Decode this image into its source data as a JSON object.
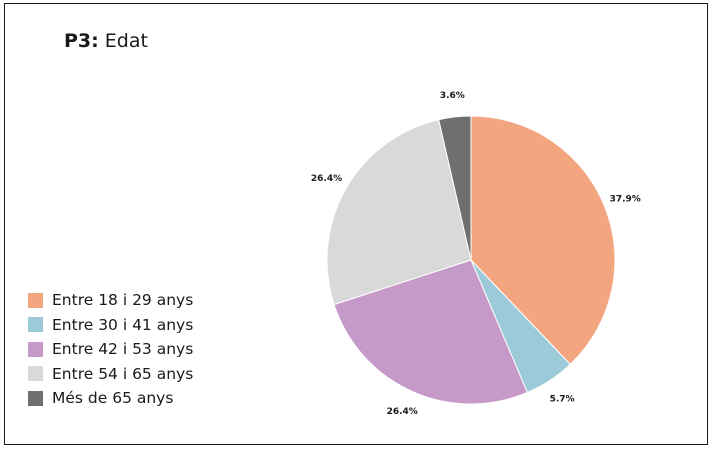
{
  "title": {
    "prefix": "P3:",
    "text": "Edat"
  },
  "chart_data": {
    "type": "pie",
    "title": "P3: Edat",
    "categories": [
      "Entre 18 i 29 anys",
      "Entre 30 i 41 anys",
      "Entre 42 i 53 anys",
      "Entre 54 i 65 anys",
      "Més de 65 anys"
    ],
    "values": [
      37.9,
      5.7,
      26.4,
      26.4,
      3.6
    ],
    "labels": [
      "37.9%",
      "5.7%",
      "26.4%",
      "26.4%",
      "3.6%"
    ],
    "colors": [
      "#f2a57e",
      "#9dcad8",
      "#c69ac8",
      "#d9d9d9",
      "#6f6f6f"
    ],
    "legend_position": "left",
    "start": "top, clockwise"
  }
}
